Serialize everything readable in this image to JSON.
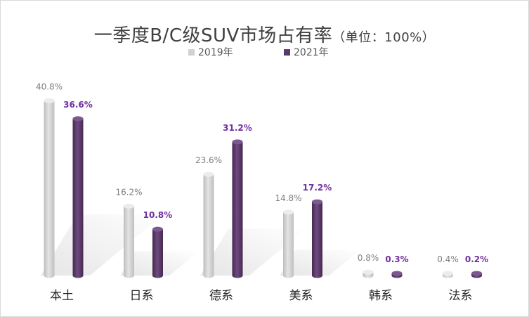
{
  "chart_data": {
    "type": "bar",
    "title": "一季度B/C级SUV市场占有率",
    "subtitle": "（单位：100%）",
    "categories": [
      "本土",
      "日系",
      "德系",
      "美系",
      "韩系",
      "法系"
    ],
    "series": [
      {
        "name": "2019年",
        "color": "#d0d0d0",
        "values": [
          40.8,
          16.2,
          23.6,
          14.8,
          0.8,
          0.4
        ],
        "labels": [
          "40.8%",
          "16.2%",
          "23.6%",
          "14.8%",
          "0.8%",
          "0.4%"
        ]
      },
      {
        "name": "2021年",
        "color": "#5a3a6e",
        "values": [
          36.6,
          10.8,
          31.2,
          17.2,
          0.3,
          0.2
        ],
        "labels": [
          "36.6%",
          "10.8%",
          "31.2%",
          "17.2%",
          "0.3%",
          "0.2%"
        ]
      }
    ],
    "ylim": [
      0,
      42
    ],
    "grid": false,
    "legend": "top-center"
  }
}
